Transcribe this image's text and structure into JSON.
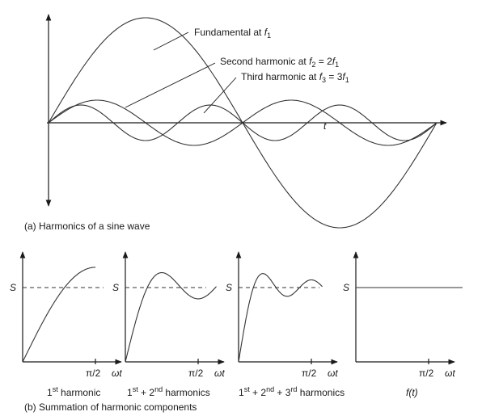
{
  "top_panel": {
    "curve_labels": [
      [
        "Fundamental at ",
        "f",
        "1"
      ],
      [
        "Second harmonic at ",
        "f",
        "2",
        " = 2",
        "f",
        "1"
      ],
      [
        "Third harmonic at ",
        "f",
        "3",
        " = 3",
        "f",
        "1"
      ]
    ],
    "axis_label": "t",
    "caption": "(a) Harmonics of a sine wave"
  },
  "bottom_panels": [
    {
      "level": "S",
      "tick": "π/2",
      "axis": [
        "ω",
        "t"
      ],
      "caption": [
        "1",
        "st",
        " harmonic"
      ]
    },
    {
      "level": "S",
      "tick": "π/2",
      "axis": [
        "ω",
        "t"
      ],
      "caption": [
        "1",
        "st",
        " + 2",
        "nd",
        " harmonics"
      ]
    },
    {
      "level": "S",
      "tick": "π/2",
      "axis": [
        "ω",
        "t"
      ],
      "caption": [
        "1",
        "st",
        " + 2",
        "nd",
        " + 3",
        "rd",
        " harmonics"
      ]
    },
    {
      "level": "S",
      "tick": "π/2",
      "axis": [
        "ω",
        "t"
      ],
      "caption": [
        "f(t)"
      ]
    }
  ],
  "caption": "(b) Summation of harmonic components"
}
